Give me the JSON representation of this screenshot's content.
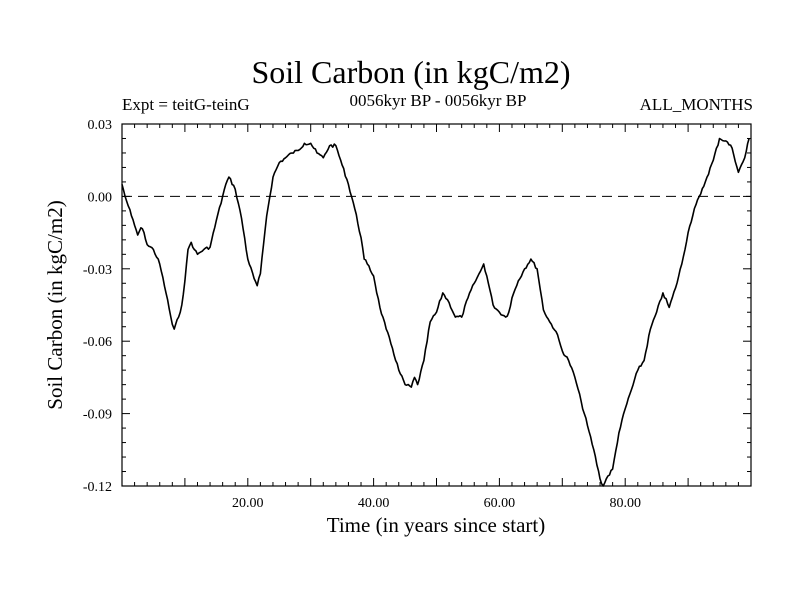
{
  "chart_data": {
    "type": "line",
    "title": "Soil Carbon (in kgC/m2)",
    "subtitle_left": "Expt = teitG-teinG",
    "subtitle_center": "0056kyr BP - 0056kyr BP",
    "subtitle_right": "ALL_MONTHS",
    "xlabel": "Time (in years since start)",
    "ylabel": "Soil Carbon (in kgC/m2)",
    "xlim": [
      0,
      100
    ],
    "ylim": [
      -0.12,
      0.03
    ],
    "xticks": [
      20,
      40,
      60,
      80
    ],
    "xtick_labels": [
      "20.00",
      "40.00",
      "60.00",
      "80.00"
    ],
    "yticks": [
      0.03,
      0.0,
      -0.03,
      -0.06,
      -0.09,
      -0.12
    ],
    "ytick_labels": [
      "0.03",
      "0.00",
      "-0.03",
      "-0.06",
      "-0.09",
      "-0.12"
    ],
    "zero_line": {
      "y": 0.0,
      "style": "dashed"
    },
    "series": [
      {
        "name": "Soil Carbon",
        "x": [
          0,
          0.5,
          1,
          1.5,
          2,
          2.5,
          3,
          3.5,
          4,
          5,
          6,
          7,
          8,
          8.3,
          9,
          9.5,
          10,
          10.5,
          11,
          11.5,
          12,
          13,
          14,
          15,
          16,
          16.5,
          17,
          18,
          19,
          20,
          21,
          21.5,
          22,
          22.5,
          23,
          24,
          25,
          26,
          27,
          28,
          29,
          30,
          31,
          32,
          33,
          34,
          35,
          36,
          37,
          38,
          38.5,
          39,
          40,
          41,
          42,
          43,
          44,
          45,
          46,
          46.5,
          47,
          48,
          49,
          50,
          51,
          52,
          53,
          54,
          55,
          56,
          57,
          57.5,
          58,
          59,
          60,
          61,
          61.5,
          62,
          63,
          64,
          65,
          66,
          67,
          68,
          69,
          70,
          71,
          72,
          73,
          74,
          75,
          76,
          76.5,
          77,
          78,
          79,
          80,
          81,
          82,
          83,
          84,
          85,
          86,
          87,
          88,
          89,
          90,
          91,
          92,
          93,
          94,
          95,
          96,
          97,
          98,
          99,
          99.7
        ],
        "values": [
          0.005,
          0.0,
          -0.004,
          -0.008,
          -0.012,
          -0.016,
          -0.013,
          -0.015,
          -0.02,
          -0.022,
          -0.028,
          -0.04,
          -0.053,
          -0.055,
          -0.05,
          -0.045,
          -0.035,
          -0.022,
          -0.019,
          -0.022,
          -0.024,
          -0.022,
          -0.021,
          -0.01,
          0.0,
          0.005,
          0.008,
          0.003,
          -0.009,
          -0.026,
          -0.034,
          -0.037,
          -0.032,
          -0.02,
          -0.008,
          0.008,
          0.014,
          0.016,
          0.018,
          0.019,
          0.022,
          0.022,
          0.018,
          0.016,
          0.021,
          0.021,
          0.013,
          0.005,
          -0.005,
          -0.017,
          -0.026,
          -0.028,
          -0.033,
          -0.046,
          -0.055,
          -0.063,
          -0.072,
          -0.078,
          -0.079,
          -0.075,
          -0.078,
          -0.068,
          -0.052,
          -0.048,
          -0.04,
          -0.044,
          -0.05,
          -0.05,
          -0.042,
          -0.036,
          -0.031,
          -0.028,
          -0.033,
          -0.045,
          -0.048,
          -0.05,
          -0.048,
          -0.042,
          -0.035,
          -0.03,
          -0.026,
          -0.03,
          -0.047,
          -0.052,
          -0.056,
          -0.064,
          -0.068,
          -0.075,
          -0.085,
          -0.095,
          -0.105,
          -0.117,
          -0.12,
          -0.117,
          -0.113,
          -0.098,
          -0.088,
          -0.08,
          -0.072,
          -0.068,
          -0.055,
          -0.048,
          -0.04,
          -0.046,
          -0.038,
          -0.028,
          -0.015,
          -0.005,
          0.001,
          0.008,
          0.015,
          0.024,
          0.023,
          0.02,
          0.01,
          0.016,
          0.024
        ]
      }
    ]
  }
}
